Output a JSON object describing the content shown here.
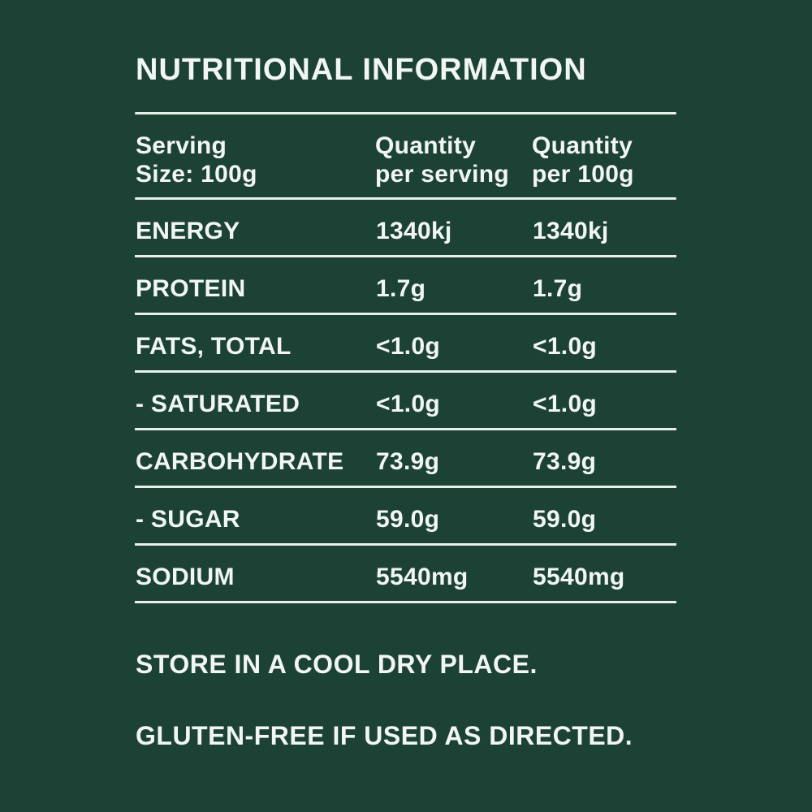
{
  "colors": {
    "background": "#1c4236",
    "text": "#f2f6f2",
    "rule": "#e9f0ea"
  },
  "title": "NUTRITIONAL INFORMATION",
  "table": {
    "header": {
      "serving": {
        "line1": "Serving",
        "line2": "Size: 100g"
      },
      "per_serving": {
        "line1": "Quantity",
        "line2": "per serving"
      },
      "per_100g": {
        "line1": "Quantity",
        "line2": "per 100g"
      }
    },
    "rows": [
      {
        "label": "ENERGY",
        "per_serving": "1340kj",
        "per_100g": "1340kj"
      },
      {
        "label": "PROTEIN",
        "per_serving": "1.7g",
        "per_100g": "1.7g"
      },
      {
        "label": "FATS, TOTAL",
        "per_serving": "<1.0g",
        "per_100g": "<1.0g"
      },
      {
        "label": "- SATURATED",
        "per_serving": "<1.0g",
        "per_100g": "<1.0g"
      },
      {
        "label": "CARBOHYDRATE",
        "per_serving": "73.9g",
        "per_100g": "73.9g"
      },
      {
        "label": "- SUGAR",
        "per_serving": "59.0g",
        "per_100g": "59.0g"
      },
      {
        "label": "SODIUM",
        "per_serving": "5540mg",
        "per_100g": "5540mg"
      }
    ]
  },
  "notes": {
    "storage": "STORE IN A COOL DRY PLACE.",
    "gluten": "GLUTEN-FREE IF USED AS DIRECTED."
  }
}
